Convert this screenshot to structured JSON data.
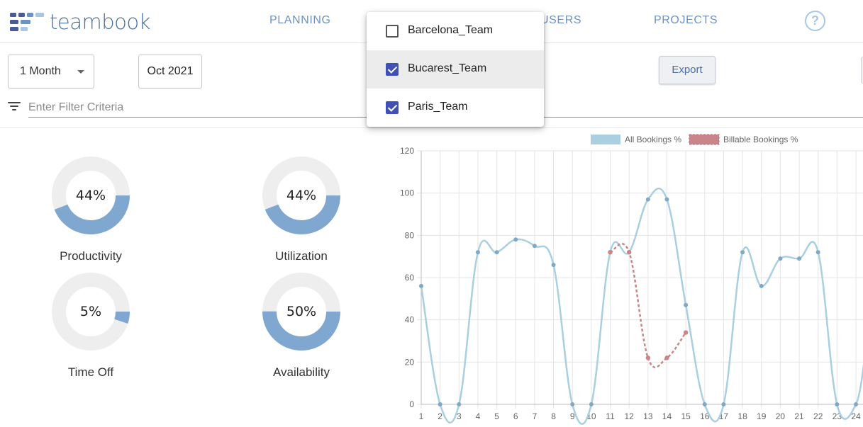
{
  "brand": {
    "name": "teambook"
  },
  "nav": {
    "items": [
      {
        "label": "PLANNING"
      },
      {
        "label": "USERS"
      },
      {
        "label": "PROJECTS"
      }
    ],
    "help": "?"
  },
  "toolbar": {
    "period_value": "1 Month",
    "month_value": "Oct 2021",
    "export_label": "Export",
    "filter_placeholder": "Enter Filter Criteria"
  },
  "team_dropdown": {
    "items": [
      {
        "label": "Barcelona_Team",
        "checked": false
      },
      {
        "label": "Bucarest_Team",
        "checked": true
      },
      {
        "label": "Paris_Team",
        "checked": true
      }
    ]
  },
  "stats": [
    {
      "label": "Productivity",
      "display": "44%",
      "fraction": 0.44
    },
    {
      "label": "Utilization",
      "display": "44%",
      "fraction": 0.44
    },
    {
      "label": "Time Off",
      "display": "5%",
      "fraction": 0.05
    },
    {
      "label": "Availability",
      "display": "50%",
      "fraction": 0.5
    }
  ],
  "colors": {
    "accent": "#80a7cf",
    "ring_track": "#eeeeee",
    "nav_text": "#6b93c5",
    "checkbox": "#3f51b5",
    "all_bookings_line": "#a9cfe0",
    "all_bookings_point": "#7fa8c7",
    "billable_line": "#c9858a"
  },
  "chart_data": {
    "type": "line",
    "x": [
      1,
      2,
      3,
      4,
      5,
      6,
      7,
      8,
      9,
      10,
      11,
      12,
      13,
      14,
      15,
      16,
      17,
      18,
      19,
      20,
      21,
      22,
      23,
      24
    ],
    "ylim": [
      0,
      120
    ],
    "yticks": [
      0,
      20,
      40,
      60,
      80,
      100,
      120
    ],
    "grid": true,
    "legend_position": "top",
    "series": [
      {
        "name": "All Bookings %",
        "values": [
          56,
          0,
          0,
          72,
          72,
          78,
          75,
          66,
          0,
          0,
          72,
          72,
          97,
          97,
          47,
          0,
          0,
          72,
          56,
          69,
          69,
          72,
          0,
          0
        ]
      },
      {
        "name": "Billable Bookings %",
        "x": [
          11,
          12,
          13,
          14,
          15
        ],
        "values": [
          72,
          72,
          22,
          22,
          34
        ]
      }
    ]
  }
}
